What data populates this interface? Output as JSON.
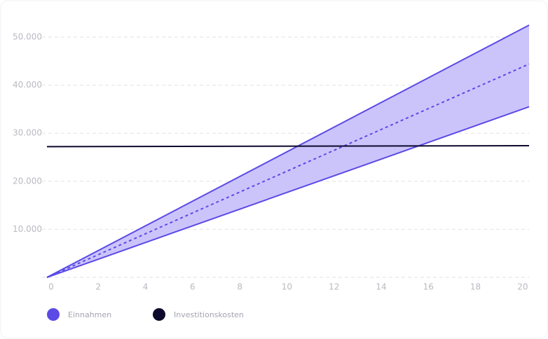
{
  "chart_data": {
    "type": "band-line",
    "x": [
      0,
      20.45
    ],
    "series": [
      {
        "name": "Einnahmen",
        "color": "#5b4ae6",
        "band_color": "#cbc4fb",
        "values": [
          0,
          44400
        ],
        "lower": [
          0,
          35500
        ],
        "upper": [
          0,
          52500
        ]
      },
      {
        "name": "Investitionskosten",
        "color": "#0d0a2c",
        "values": [
          27200,
          27400
        ]
      }
    ],
    "xlim": [
      0,
      20.45
    ],
    "xticks": [
      0,
      2,
      4,
      6,
      8,
      10,
      12,
      14,
      16,
      18,
      20
    ],
    "ylim": [
      0,
      57000
    ],
    "yticks": [
      {
        "value": 10000,
        "label": "10.000"
      },
      {
        "value": 20000,
        "label": "20.000"
      },
      {
        "value": 30000,
        "label": "30.000"
      },
      {
        "value": 40000,
        "label": "40.000"
      },
      {
        "value": 50000,
        "label": "50.000"
      }
    ],
    "grid": true
  }
}
